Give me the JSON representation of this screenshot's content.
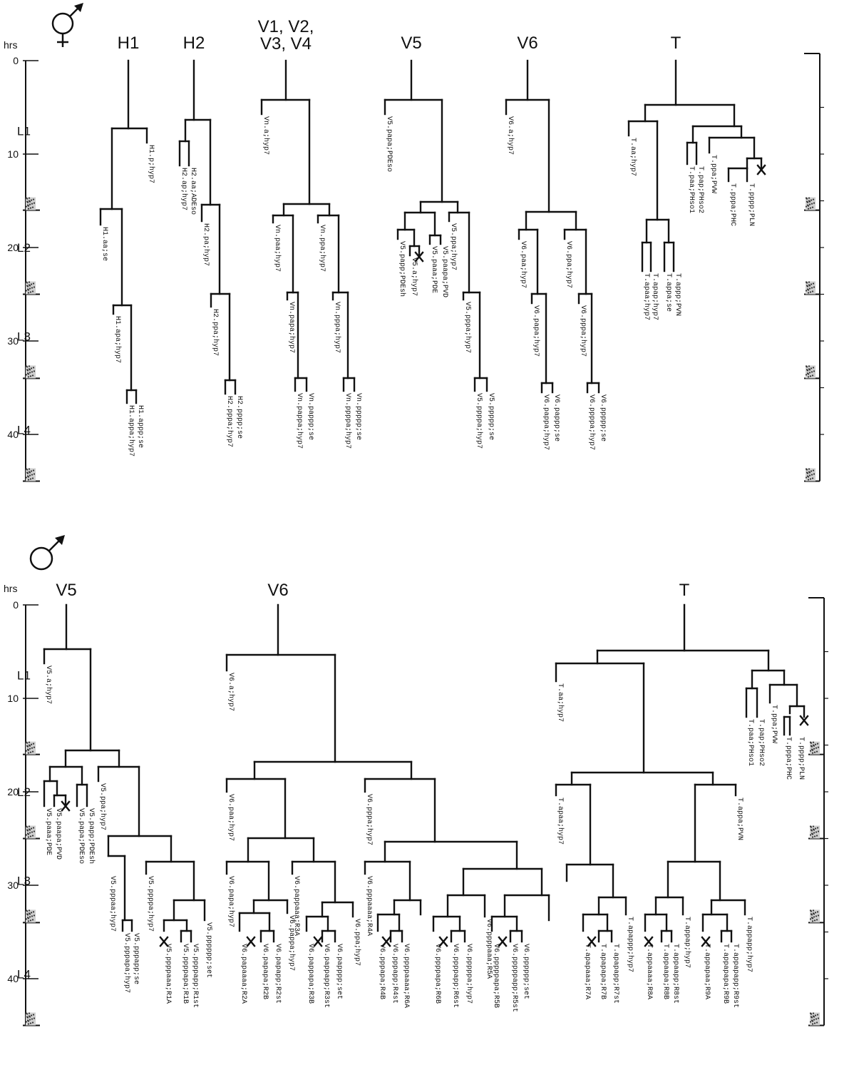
{
  "panels": [
    {
      "sex_symbol": "hermaphrodite",
      "hrs_label": "hrs",
      "time_ticks": [
        "0",
        "10",
        "20",
        "30",
        "40"
      ],
      "stages": [
        "L1",
        "L2",
        "L3",
        "L4"
      ],
      "lineages": [
        {
          "id": "H1",
          "name": "H1",
          "labels": [
            "H1.p;hyp7",
            "H1.aa;se",
            "H1.apa;hyp7",
            "H1.appa;hyp7",
            "H1.appp;se"
          ]
        },
        {
          "id": "H2",
          "name": "H2",
          "labels": [
            "H2.ap;hyp7",
            "H2.aa;ADEso",
            "H2.pa;hyp7",
            "H2.ppa;hyp7",
            "H2.pppa;hyp7",
            "H2.pppp;se"
          ]
        },
        {
          "id": "Vn",
          "name": "V1, V2,\nV3, V4",
          "labels": [
            "Vn.a;hyp7",
            "Vn.paa;hyp7",
            "Vn.papa;hyp7",
            "Vn.pappa;hyp7",
            "Vn.pappp;se",
            "Vn.ppa;hyp7",
            "Vn.pppa;hyp7",
            "Vn.ppppa;hyp7",
            "Vn.ppppp;se"
          ]
        },
        {
          "id": "V5",
          "name": "V5",
          "labels": [
            "V5.a;hyp7",
            "V5.paaa;PDE",
            "V5.paapa;PVD",
            "V5.papa;PDEso",
            "V5.papp;PDEsh",
            "V5.ppa;hyp7",
            "V5.pppa;hyp7",
            "V5.ppppa;hyp7",
            "V5.ppppp;se"
          ]
        },
        {
          "id": "V6",
          "name": "V6",
          "labels": [
            "V6.a;hyp7",
            "V6.paa;hyp7",
            "V6.papa;hyp7",
            "V6.pappa;hyp7",
            "V6.pappp;se",
            "V6.ppa;hyp7",
            "V6.pppa;hyp7",
            "V6.ppppa;hyp7",
            "V6.ppppp;se"
          ]
        },
        {
          "id": "T",
          "name": "T",
          "labels": [
            "T.aa;hyp7",
            "T.pap;PHso2",
            "T.paa;PHso1",
            "T.ppa;PVW",
            "T.pppa;PHC",
            "T.pppp;PLN",
            "T.apaa;hyp7",
            "T.apap;hyp7",
            "T.appa;se",
            "T.appp;PVN"
          ]
        }
      ]
    },
    {
      "sex_symbol": "male",
      "hrs_label": "hrs",
      "time_ticks": [
        "0",
        "10",
        "20",
        "30",
        "40"
      ],
      "stages": [
        "L1",
        "L2",
        "L3",
        "L4"
      ],
      "lineages": [
        {
          "id": "V5",
          "name": "V5",
          "labels": [
            "V5.a;hyp7",
            "V5.paaa;PDE",
            "V5.paapa;PVD",
            "V5.papa;PDEso",
            "V5.papp;PDEsh",
            "V5.ppa;hyp7",
            "V5.pppaa;hyp7",
            "V5.pppapa;hyp7",
            "V5.pppapp;se",
            "V5.ppppa;hyp7",
            "V5.ppppaaa;R1A",
            "V5.ppppapa;R1B",
            "V5.ppppapp;R1st",
            "V5.pppppp;set"
          ]
        },
        {
          "id": "V6",
          "name": "V6",
          "labels": [
            "V6.a;hyp7",
            "V6.paa;hyp7",
            "V6.papa;hyp7",
            "V6.papaaaa;R2A",
            "V6.papapa;R2B",
            "V6.papapp;R2st",
            "V6.pappa;hyp7",
            "V6.pappaaa;R3A",
            "V6.pappapa;R3B",
            "V6.pappapp;R3st",
            "V6.papppp;set",
            "V6.ppa;hyp7",
            "V6.pppa;hyp7",
            "V6.pppaaaa;R4A",
            "V6.pppapa;R4B",
            "V6.pppapp;R4st",
            "V6.ppppaaaa;R6A",
            "V6.ppppapa;R6B",
            "V6.ppppapp;R6st",
            "V6.pppppa;hyp7",
            "V6.ppppaaa;R5A",
            "V6.pppppapa;R5B",
            "V6.pppppapp;R5st",
            "V6.pppppp;set"
          ]
        },
        {
          "id": "T",
          "name": "T",
          "labels": [
            "T.aa;hyp7",
            "T.paa;PHso1",
            "T.pap;PHso2",
            "T.ppa;PVW",
            "T.pppa;PHC",
            "T.pppp;PLN",
            "T.apaa;hyp7",
            "T.apapaaa;R7A",
            "T.apapapa;R7B",
            "T.apapapp;R7st",
            "T.apappp;hyp7",
            "T.appa;PVN",
            "T.appaaaa;R8A",
            "T.appaapa;R8B",
            "T.appaapp;R8st",
            "T.appap;hyp7",
            "T.appapaa;R9A",
            "T.appapapa;R9B",
            "T.appapapp;R9st",
            "T.appapp;hyp7"
          ]
        }
      ]
    }
  ],
  "colors": {
    "ink": "#111111",
    "paper": "#ffffff"
  }
}
